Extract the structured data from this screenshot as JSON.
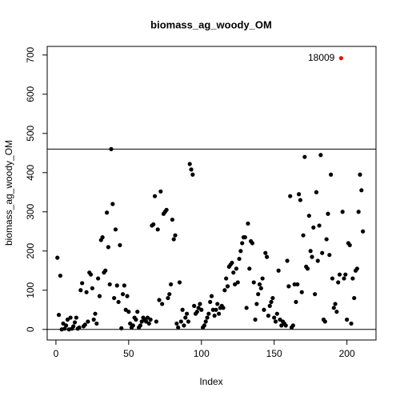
{
  "chart_data": {
    "type": "scatter",
    "title": "biomass_ag_woody_OM",
    "x_label": "Index",
    "y_label": "biomass_ag_woody_OM",
    "values": [
      183,
      37,
      137,
      0,
      15,
      2,
      10,
      25,
      0,
      30,
      2,
      8,
      18,
      30,
      2,
      5,
      100,
      118,
      8,
      12,
      95,
      20,
      145,
      140,
      105,
      25,
      40,
      15,
      130,
      85,
      228,
      235,
      145,
      150,
      298,
      210,
      115,
      460,
      320,
      80,
      255,
      112,
      70,
      215,
      3,
      90,
      112,
      50,
      85,
      45,
      15,
      5,
      10,
      30,
      25,
      45,
      5,
      10,
      20,
      30,
      25,
      20,
      30,
      15,
      25,
      265,
      268,
      340,
      20,
      255,
      75,
      352,
      65,
      295,
      300,
      305,
      80,
      90,
      115,
      280,
      230,
      240,
      15,
      5,
      120,
      20,
      50,
      10,
      30,
      40,
      20,
      422,
      408,
      395,
      60,
      40,
      45,
      55,
      65,
      50,
      5,
      10,
      20,
      30,
      40,
      70,
      85,
      50,
      35,
      50,
      65,
      40,
      55,
      60,
      55,
      100,
      130,
      110,
      160,
      165,
      170,
      145,
      115,
      155,
      120,
      180,
      200,
      220,
      235,
      235,
      55,
      270,
      155,
      225,
      220,
      120,
      25,
      65,
      90,
      115,
      105,
      130,
      50,
      195,
      185,
      35,
      60,
      70,
      80,
      30,
      20,
      40,
      150,
      25,
      10,
      20,
      15,
      10,
      175,
      110,
      340,
      5,
      10,
      115,
      70,
      115,
      345,
      330,
      95,
      240,
      440,
      160,
      155,
      290,
      200,
      185,
      260,
      90,
      350,
      175,
      265,
      445,
      195,
      25,
      20,
      230,
      295,
      190,
      395,
      130,
      55,
      65,
      45,
      120,
      140,
      692,
      300,
      130,
      140,
      25,
      220,
      215,
      15,
      130,
      80,
      150,
      155,
      300,
      395,
      355,
      250
    ],
    "color": "#000000",
    "highlight": {
      "index": 196,
      "label": "18009",
      "color": "#ff0000"
    },
    "hlines": [
      0,
      460
    ],
    "xlim": [
      -6,
      220
    ],
    "xticks": [
      0,
      50,
      100,
      150,
      200
    ],
    "ylim": [
      -27,
      722
    ],
    "yticks": [
      0,
      100,
      200,
      300,
      400,
      500,
      600,
      700
    ]
  }
}
